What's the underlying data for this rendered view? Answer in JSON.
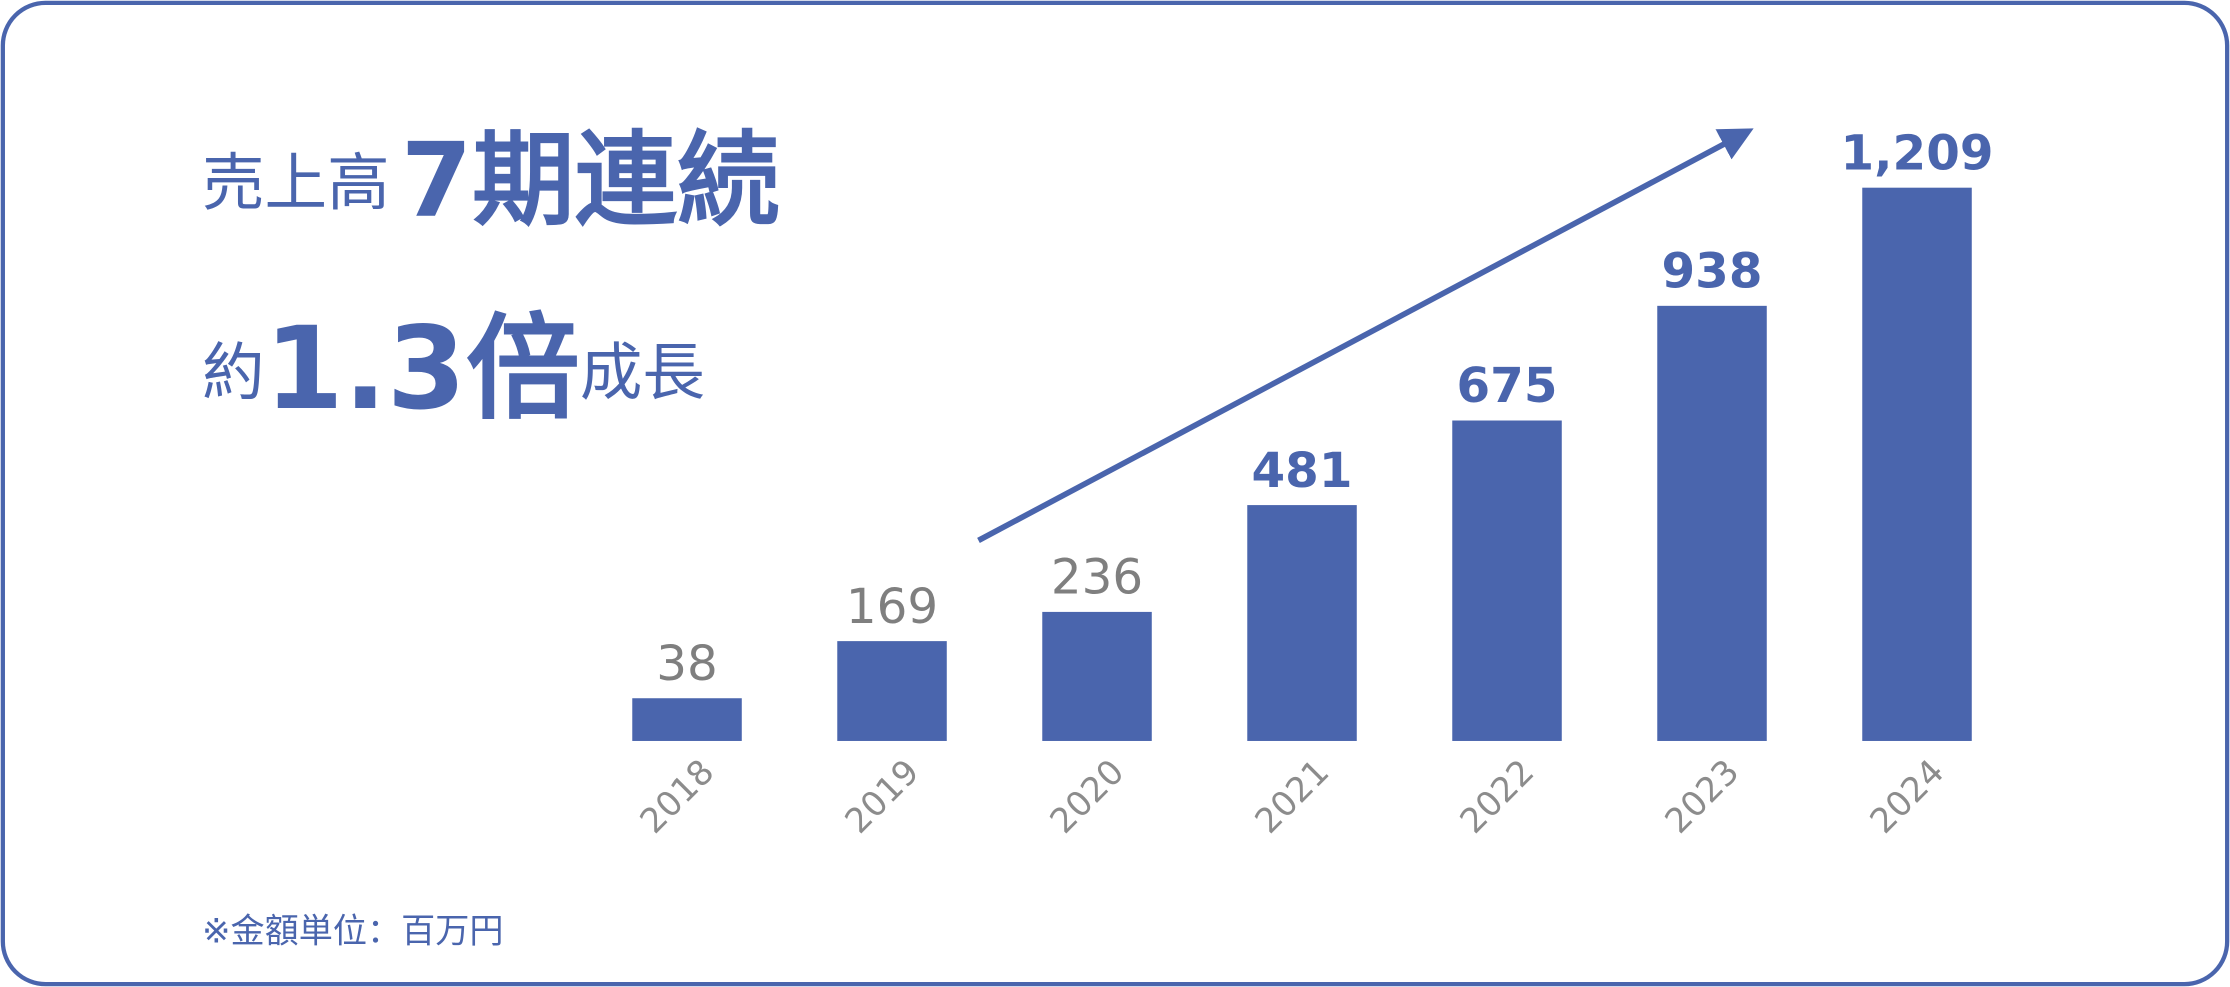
{
  "chart_data": {
    "type": "bar",
    "headline_prefix": "売上高",
    "headline_emphasis": "7期連続",
    "subline_prefix": "約",
    "subline_emphasis": "1.3倍",
    "subline_suffix": "成長",
    "footnote": "※金額単位：百万円",
    "categories": [
      "2018",
      "2019",
      "2020",
      "2021",
      "2022",
      "2023",
      "2024"
    ],
    "values": [
      38,
      169,
      236,
      481,
      675,
      938,
      1209
    ],
    "value_labels": [
      "38",
      "169",
      "236",
      "481",
      "675",
      "938",
      "1,209"
    ],
    "label_colors": [
      "#7f7f7f",
      "#7f7f7f",
      "#7f7f7f",
      "#4a65ad",
      "#4a65ad",
      "#4a65ad",
      "#4a65ad"
    ],
    "color": "#4a65ad",
    "ylim": [
      -60,
      1250
    ]
  }
}
